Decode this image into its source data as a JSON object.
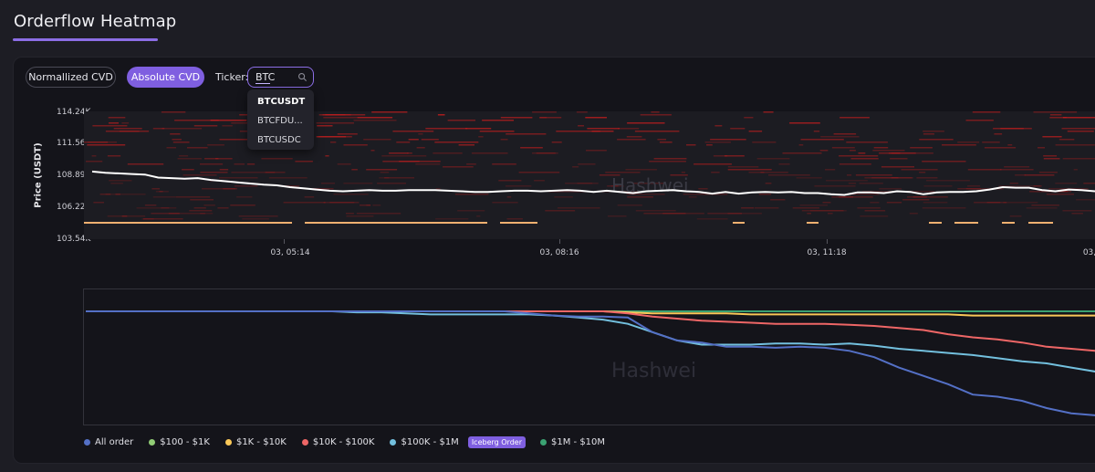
{
  "page": {
    "title": "Orderflow Heatmap"
  },
  "controls": {
    "normalized_label": "Normallized CVD",
    "absolute_label": "Absolute CVD",
    "ticker_label": "Ticker:",
    "ticker_value": "BTC"
  },
  "dropdown": {
    "options": [
      "BTCUSDT",
      "BTCFDU...",
      "BTCUSDC"
    ],
    "selected": "BTCUSDT"
  },
  "watermark": "Hashwei",
  "chart_data": [
    {
      "type": "heatmap",
      "ylabel": "Price (USDT)",
      "y_ticks": [
        "114.24K",
        "111.56K",
        "108.89K",
        "106.22K",
        "103.54K"
      ],
      "ylim": [
        103540,
        114240
      ],
      "x_ticks": [
        "03, 05:14",
        "03, 08:16",
        "03, 11:18",
        "03,"
      ],
      "price_line": [
        109200,
        109100,
        109050,
        109000,
        108950,
        108700,
        108650,
        108600,
        108650,
        108500,
        108400,
        108300,
        108200,
        108100,
        108050,
        107900,
        107800,
        107700,
        107600,
        107550,
        107600,
        107650,
        107600,
        107600,
        107650,
        107650,
        107650,
        107600,
        107550,
        107500,
        107500,
        107550,
        107600,
        107600,
        107550,
        107600,
        107650,
        107600,
        107500,
        107600,
        107500,
        107400,
        107550,
        107600,
        107650,
        107550,
        107500,
        107350,
        107500,
        107350,
        107450,
        107500,
        107450,
        107500,
        107400,
        107400,
        107300,
        107250,
        107450,
        107450,
        107400,
        107550,
        107500,
        107300,
        107450,
        107500,
        107500,
        107550,
        107700,
        107900,
        107850,
        107850,
        107650,
        107550,
        107700,
        107650,
        107550
      ]
    },
    {
      "type": "line",
      "series": [
        {
          "name": "All order",
          "color": "#5470c6",
          "values": [
            0,
            0,
            0,
            0,
            0,
            0,
            0,
            0,
            0,
            0,
            0,
            0,
            0,
            0,
            0,
            0,
            0,
            0,
            -2,
            -4,
            -5,
            -5,
            -6,
            -20,
            -28,
            -30,
            -34,
            -34,
            -35,
            -34,
            -35,
            -38,
            -44,
            -54,
            -62,
            -70,
            -80,
            -82,
            -86,
            -93,
            -98,
            -100
          ]
        },
        {
          "name": "$100 - $1K",
          "color": "#91cc75",
          "values": [
            0,
            0,
            0,
            0,
            0,
            0,
            0,
            0,
            0,
            0,
            0,
            0,
            0,
            0,
            0,
            0,
            0,
            0,
            0,
            0,
            0,
            0,
            0,
            0,
            0,
            0,
            0,
            0,
            0,
            0,
            0,
            0,
            0,
            0,
            0,
            0,
            0,
            0,
            0,
            0,
            0,
            0
          ]
        },
        {
          "name": "$1K - $10K",
          "color": "#fac858",
          "values": [
            0,
            0,
            0,
            0,
            0,
            0,
            0,
            0,
            0,
            0,
            0,
            0,
            0,
            0,
            0,
            0,
            0,
            0,
            0,
            0,
            0,
            0,
            -1,
            -2,
            -2,
            -2,
            -2,
            -3,
            -3,
            -3,
            -3,
            -3,
            -3,
            -3,
            -3,
            -3,
            -4,
            -4,
            -4,
            -4,
            -4,
            -4
          ]
        },
        {
          "name": "$10K - $100K",
          "color": "#ee6666",
          "values": [
            0,
            0,
            0,
            0,
            0,
            0,
            0,
            0,
            0,
            0,
            0,
            0,
            0,
            0,
            0,
            0,
            0,
            0,
            0,
            0,
            0,
            0,
            -2,
            -5,
            -7,
            -9,
            -10,
            -11,
            -12,
            -12,
            -12,
            -13,
            -14,
            -16,
            -18,
            -22,
            -25,
            -27,
            -30,
            -34,
            -36,
            -38
          ]
        },
        {
          "name": "$100K - $1M",
          "color": "#73c0de",
          "values": [
            0,
            0,
            0,
            0,
            0,
            0,
            0,
            0,
            0,
            0,
            0,
            -1,
            -1,
            -2,
            -3,
            -3,
            -3,
            -3,
            -3,
            -4,
            -6,
            -8,
            -12,
            -20,
            -28,
            -32,
            -32,
            -32,
            -31,
            -31,
            -32,
            -31,
            -33,
            -36,
            -38,
            -40,
            -42,
            -45,
            -48,
            -50,
            -54,
            -58
          ]
        },
        {
          "name": "$1M - $10M",
          "color": "#3ba272",
          "values": [
            0,
            0,
            0,
            0,
            0,
            0,
            0,
            0,
            0,
            0,
            0,
            0,
            0,
            0,
            0,
            0,
            0,
            0,
            0,
            0,
            0,
            0,
            0,
            0,
            0,
            0,
            0,
            0,
            0,
            0,
            0,
            0,
            0,
            0,
            0,
            0,
            0,
            0,
            0,
            0,
            0,
            0
          ]
        }
      ],
      "iceberg_label": "Iceberg Order"
    }
  ]
}
